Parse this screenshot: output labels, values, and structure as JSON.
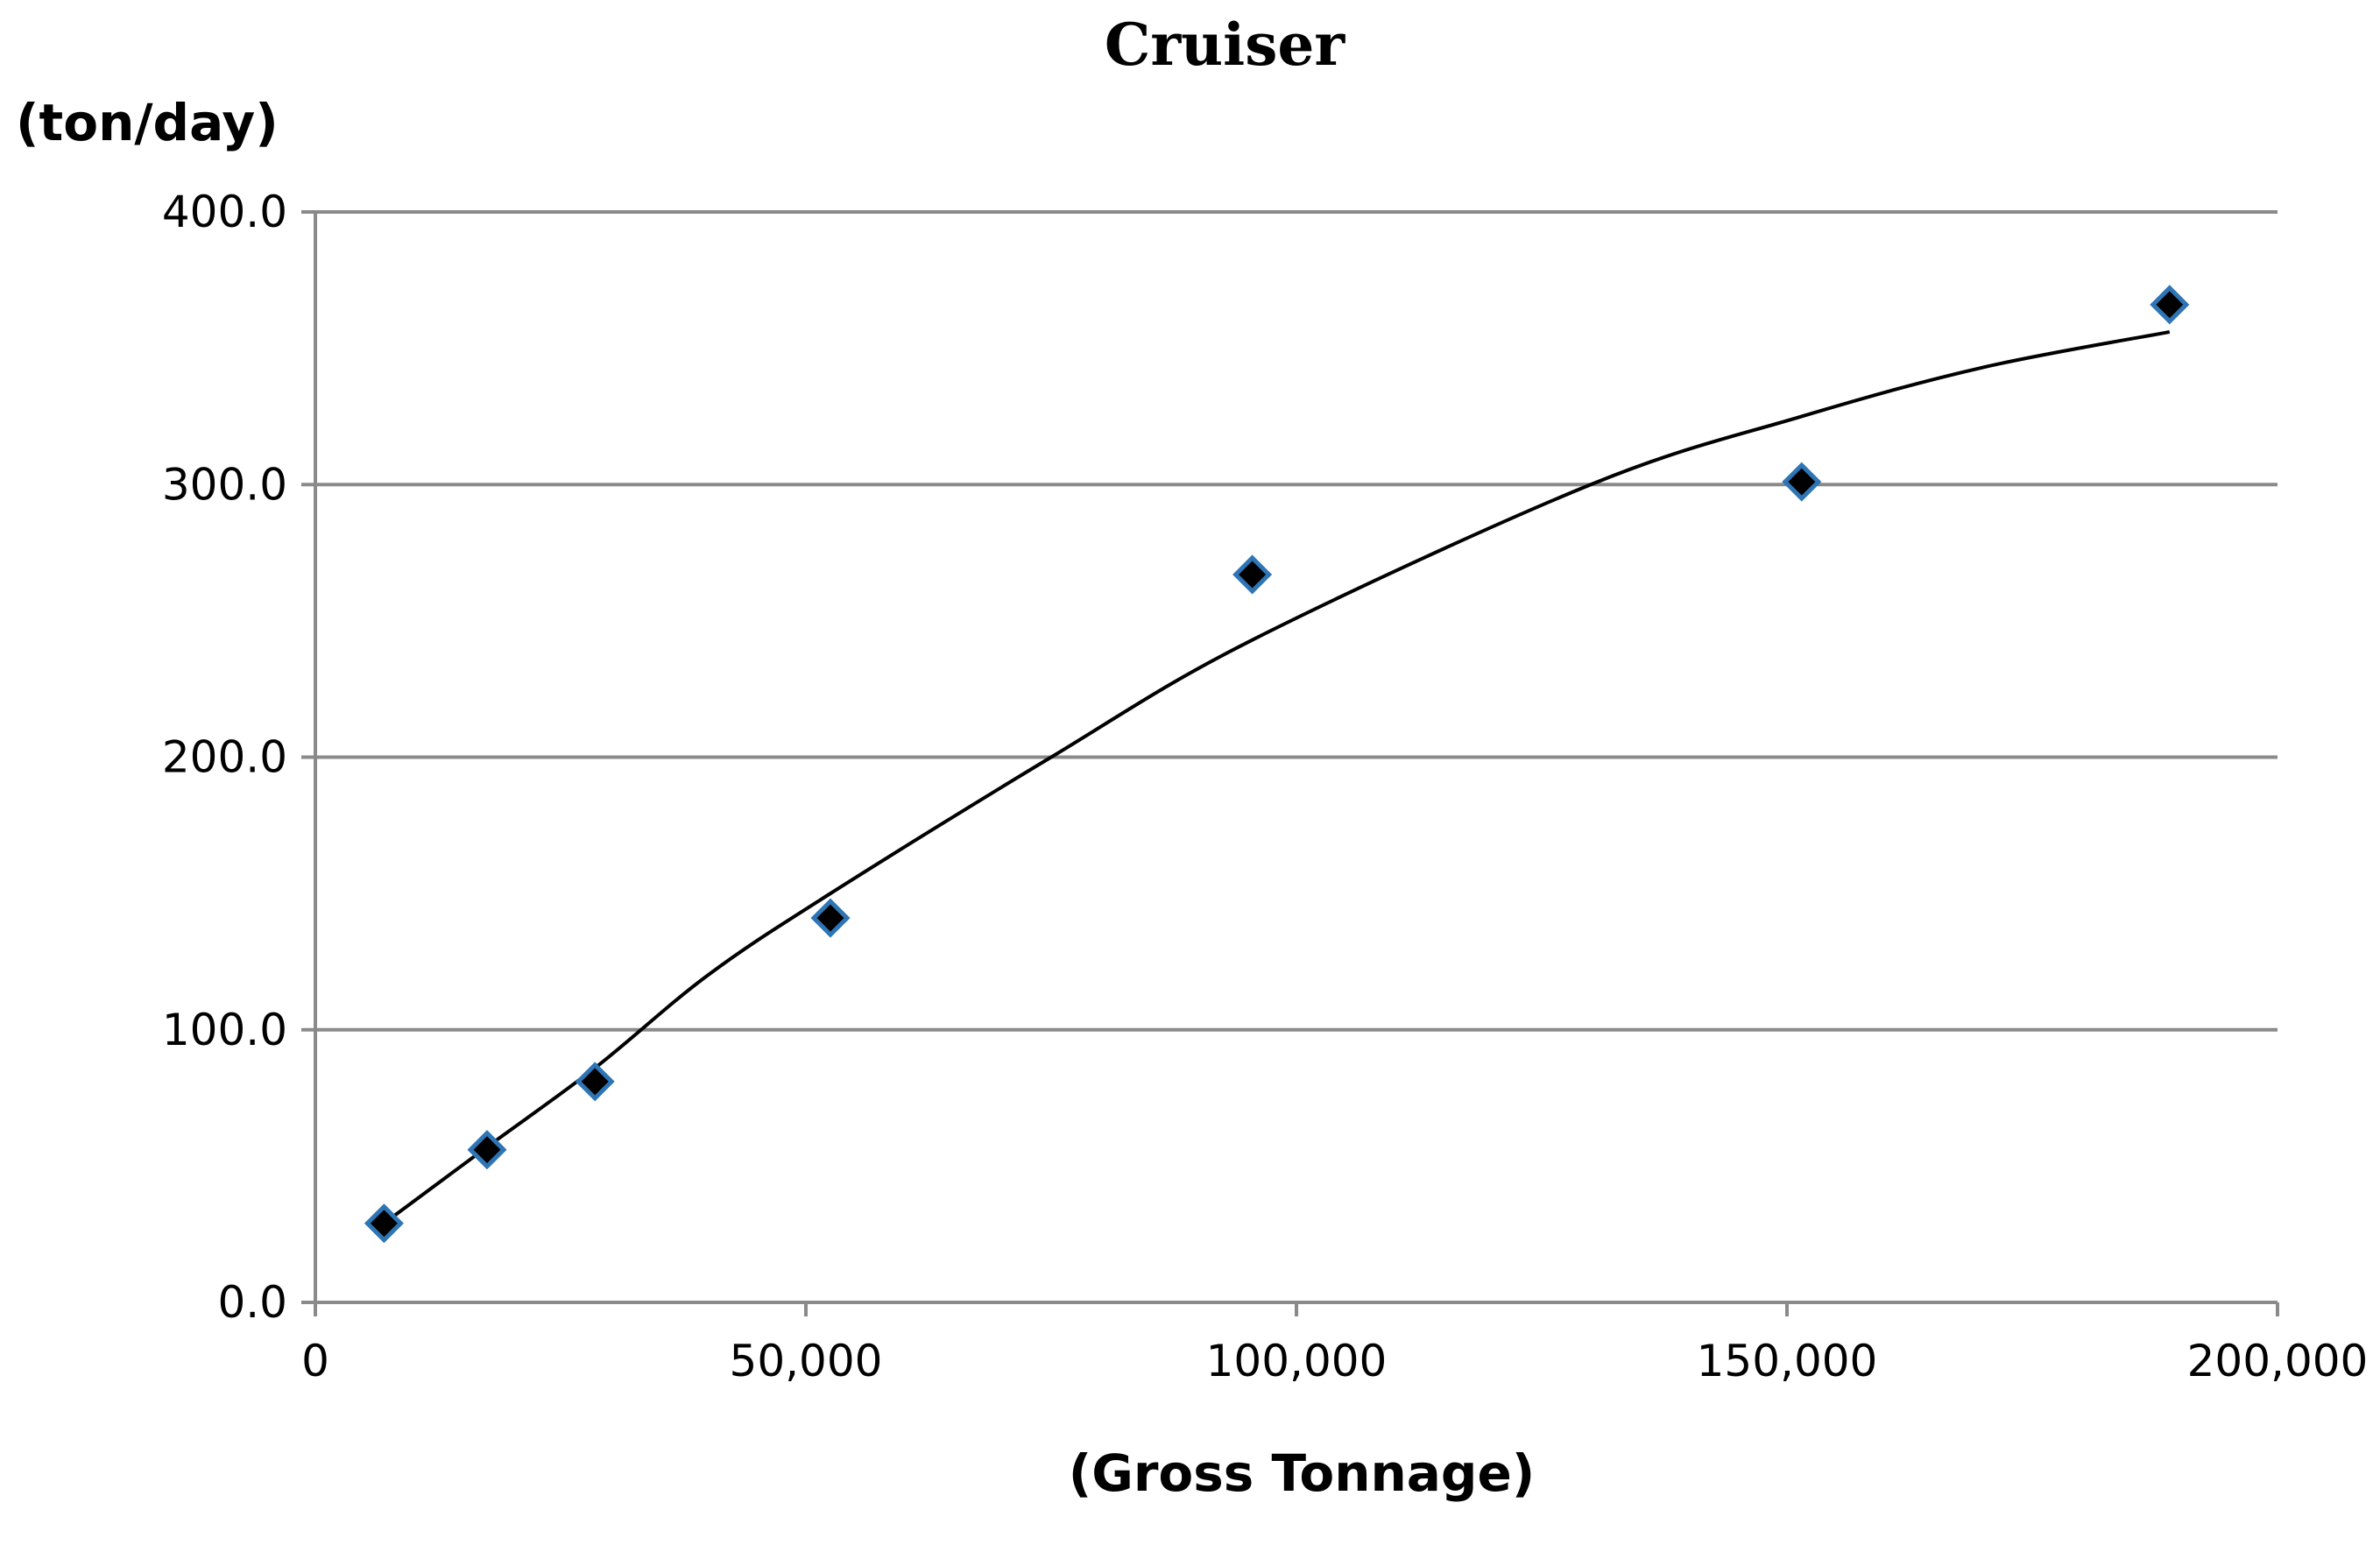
{
  "chart_data": {
    "type": "scatter",
    "title": "Cruiser",
    "xlabel": "(Gross Tonnage)",
    "ylabel": "(ton/day)",
    "xlim": [
      0,
      200000
    ],
    "ylim": [
      0,
      400
    ],
    "x_ticks": [
      0,
      50000,
      100000,
      150000,
      200000
    ],
    "x_tick_labels": [
      "0",
      "50,000",
      "100,000",
      "150,000",
      "200,000"
    ],
    "y_ticks": [
      0,
      100,
      200,
      300,
      400
    ],
    "y_tick_labels": [
      "0.0",
      "100.0",
      "200.0",
      "300.0",
      "400.0"
    ],
    "grid": true,
    "legend": "none",
    "series": [
      {
        "marker": "diamond",
        "marker_fill": "#000000",
        "marker_edge": "#2e75b6",
        "x": [
          7000,
          17500,
          28500,
          52500,
          95500,
          151500,
          189000
        ],
        "y": [
          29,
          56,
          81,
          141,
          267,
          301,
          366
        ]
      }
    ],
    "trendline": {
      "type": "polynomial-2",
      "color": "#000000",
      "x": [
        7000,
        17500,
        28500,
        40000,
        52500,
        75000,
        95500,
        130000,
        151500,
        170000,
        189000
      ],
      "y": [
        29,
        57,
        86,
        120,
        150,
        200,
        243,
        300,
        325,
        343,
        356
      ]
    }
  }
}
